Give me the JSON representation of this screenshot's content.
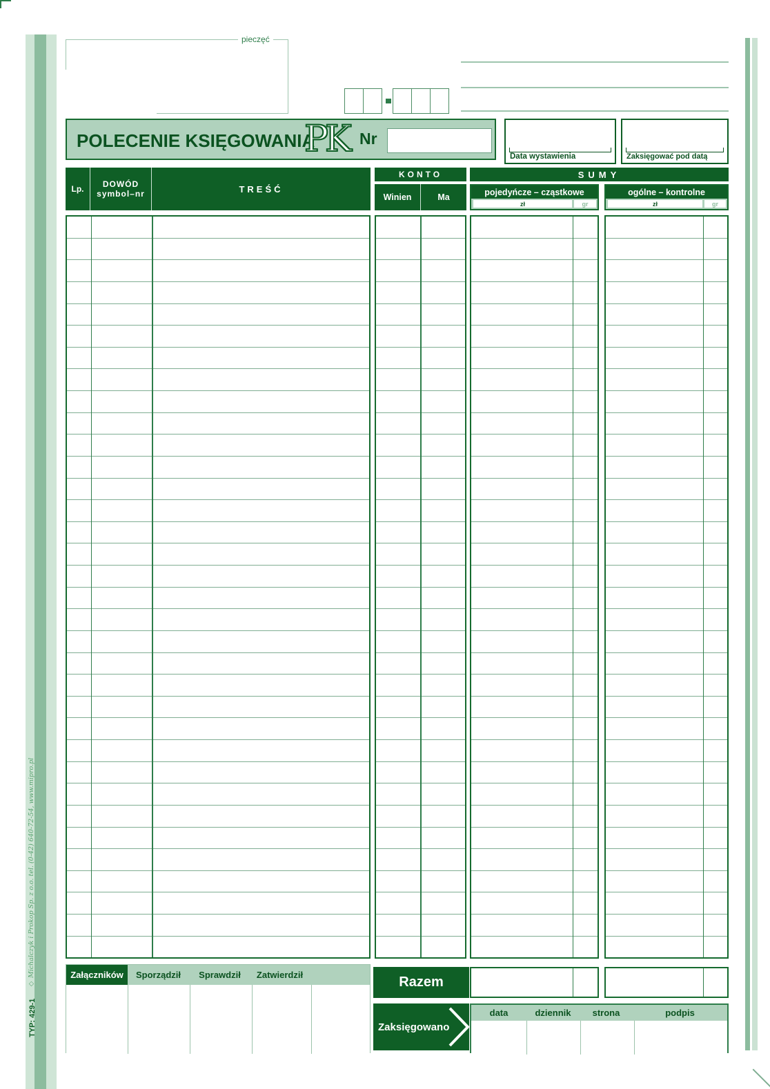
{
  "colors": {
    "dark_green": "#0f5f26",
    "band_green": "#b0d2bd",
    "stripe_green": "#d8e9dd",
    "row_line_green": "#7fad92",
    "border_green": "#156a2e"
  },
  "stamp": {
    "label": "pieczęć"
  },
  "title_band": {
    "title": "POLECENIE KSIĘGOWANIA",
    "code": "PK",
    "nr_label": "Nr",
    "nr_value": ""
  },
  "date_boxes": {
    "issue_label": "Data wystawienia",
    "posting_label": "Zaksięgować pod datą",
    "left_cells": 2,
    "right_cells": 3
  },
  "table": {
    "row_count": 34,
    "headers": {
      "lp": "Lp.",
      "dowod_line1": "DOWÓD",
      "dowod_line2": "symbol–nr",
      "tresc": "TREŚĆ",
      "konto": "KONTO",
      "winien": "Winien",
      "ma": "Ma",
      "sumy": "SUMY",
      "partial": "pojedyńcze – cząstkowe",
      "control": "ogólne – kontrolne",
      "zl": "zł",
      "gr": "gr"
    }
  },
  "footer": {
    "attachments": "Załączników",
    "prepared": "Sporządził",
    "checked": "Sprawdził",
    "approved": "Zatwierdził",
    "total": "Razem",
    "posted": "Zaksięgowano",
    "journal_headers": [
      "data",
      "dziennik",
      "strona",
      "podpis"
    ]
  },
  "imprint": {
    "publisher": "◇ Michalczyk i Prokop Sp. z o.o.  tel. (0-42) 640-72-54, www.mipro.pl",
    "type_code": "TYP: 429-1"
  }
}
